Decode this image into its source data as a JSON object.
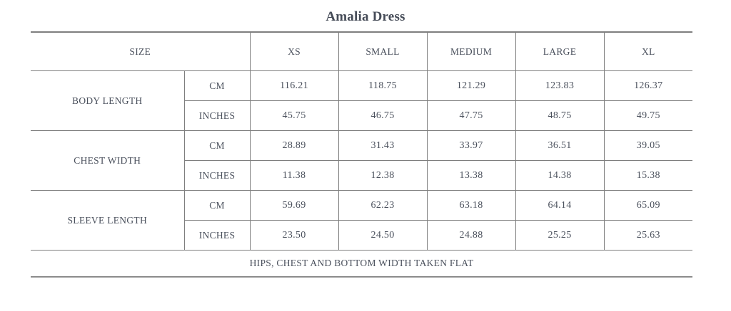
{
  "page": {
    "title": "Amalia Dress"
  },
  "colors": {
    "text": "#4a505c",
    "border": "#7e7e7e",
    "background": "#ffffff"
  },
  "chart_data": {
    "type": "table",
    "title": "Amalia Dress",
    "header": {
      "size_label": "SIZE",
      "sizes": [
        "XS",
        "SMALL",
        "MEDIUM",
        "LARGE",
        "XL"
      ]
    },
    "unit_labels": [
      "CM",
      "INCHES"
    ],
    "measurements": [
      {
        "label": "BODY LENGTH",
        "cm": [
          "116.21",
          "118.75",
          "121.29",
          "123.83",
          "126.37"
        ],
        "inches": [
          "45.75",
          "46.75",
          "47.75",
          "48.75",
          "49.75"
        ]
      },
      {
        "label": "CHEST WIDTH",
        "cm": [
          "28.89",
          "31.43",
          "33.97",
          "36.51",
          "39.05"
        ],
        "inches": [
          "11.38",
          "12.38",
          "13.38",
          "14.38",
          "15.38"
        ]
      },
      {
        "label": "SLEEVE LENGTH",
        "cm": [
          "59.69",
          "62.23",
          "63.18",
          "64.14",
          "65.09"
        ],
        "inches": [
          "23.50",
          "24.50",
          "24.88",
          "25.25",
          "25.63"
        ]
      }
    ],
    "footnote": "HIPS, CHEST AND BOTTOM WIDTH TAKEN FLAT"
  }
}
